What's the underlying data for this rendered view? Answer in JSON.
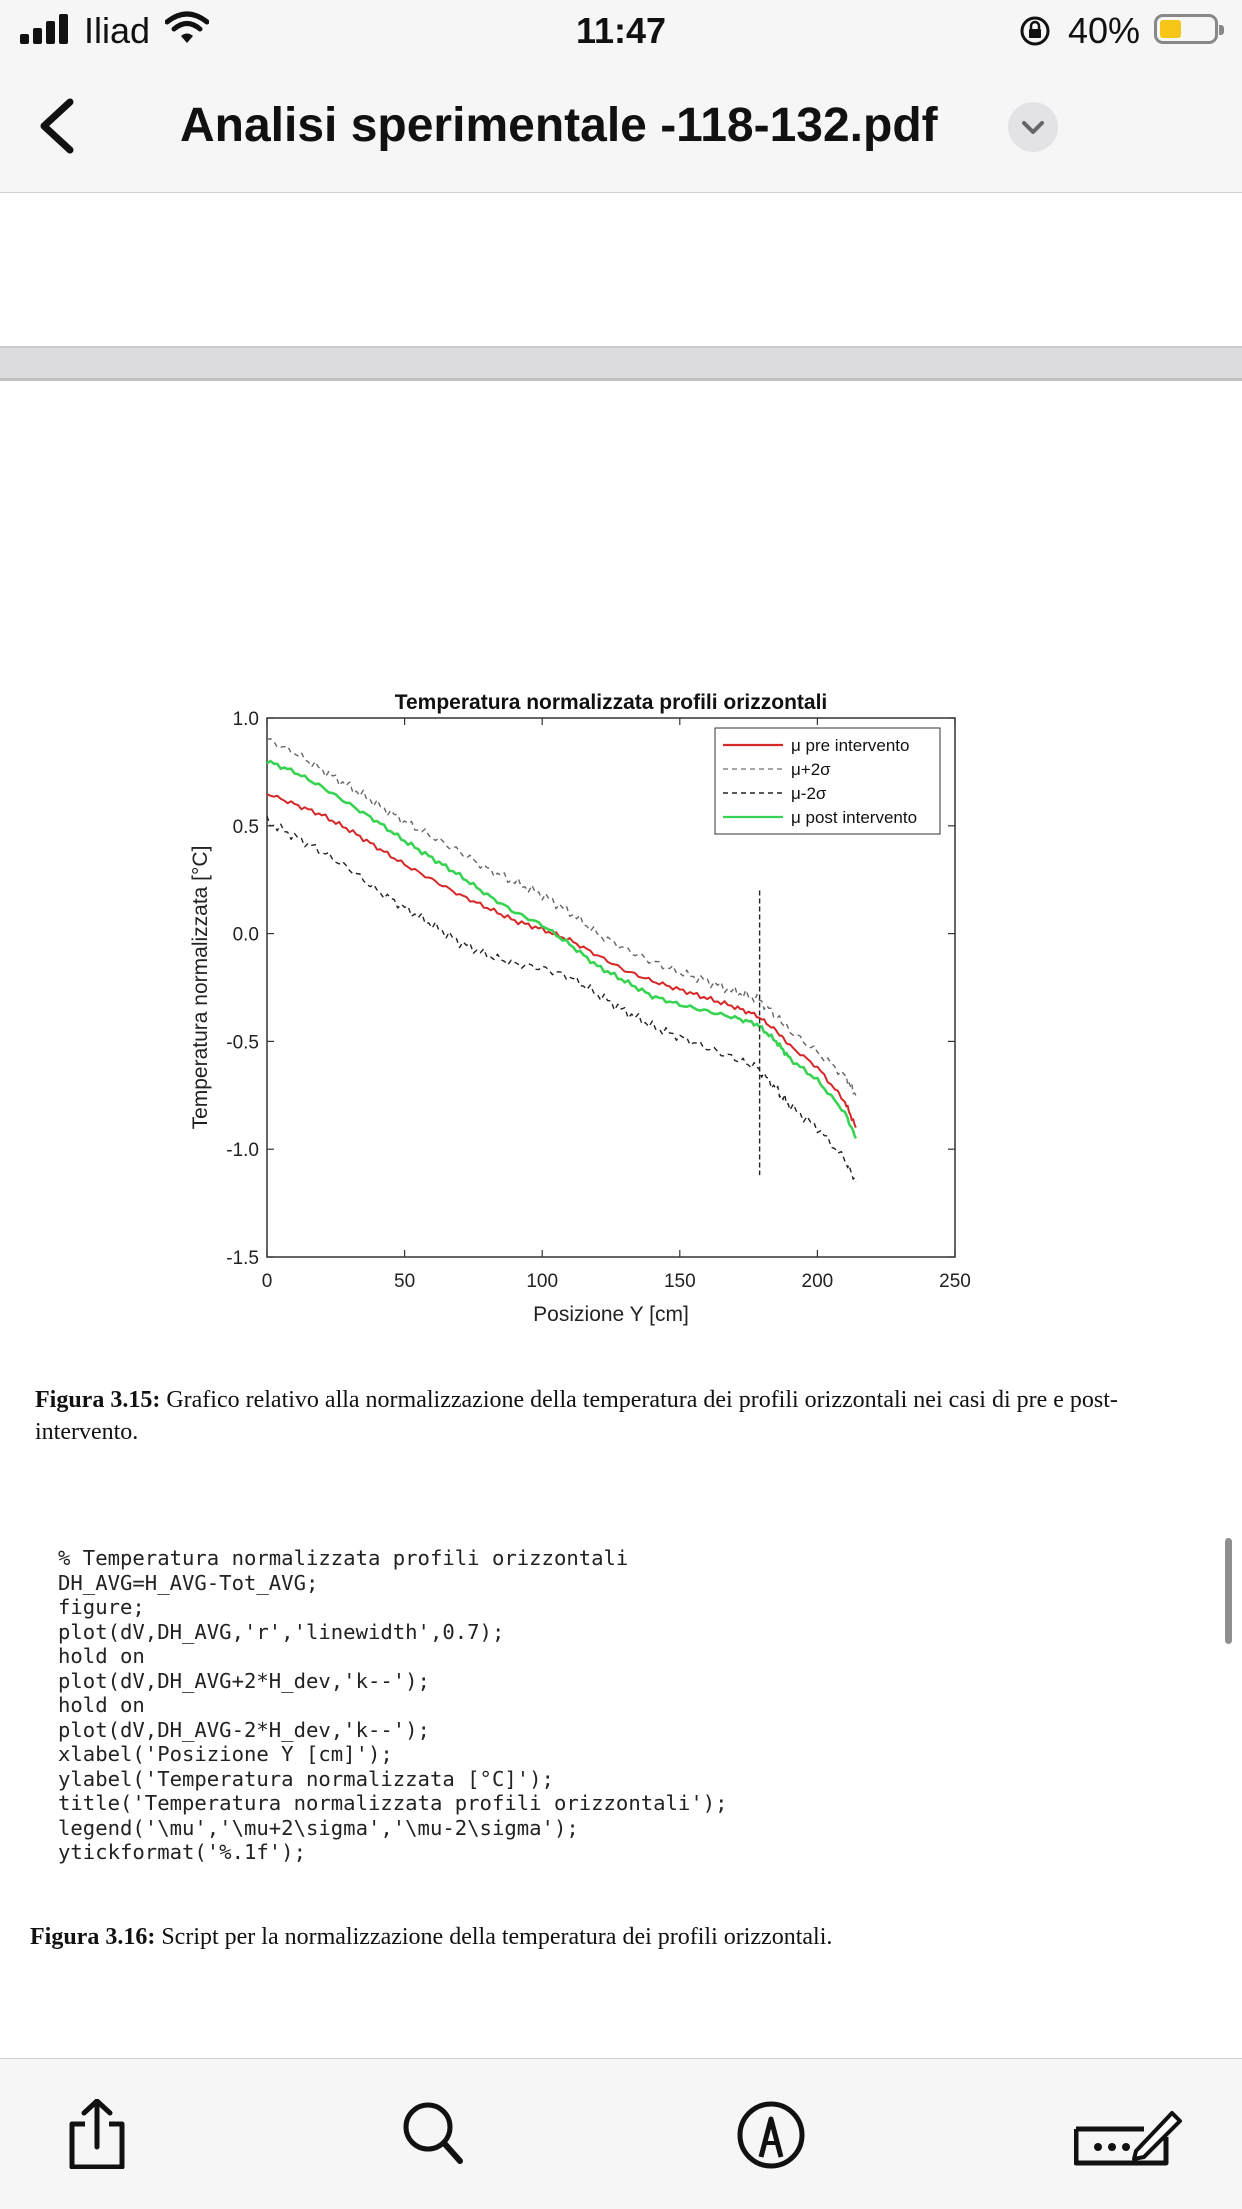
{
  "status_bar": {
    "carrier": "Iliad",
    "time": "11:47",
    "battery_percent": "40%",
    "battery_level": 0.4,
    "battery_color": "#f5c518"
  },
  "nav": {
    "title": "Analisi sperimentale -118-132.pdf",
    "back_icon": "chevron-left-icon",
    "title_menu_icon": "chevron-down-icon"
  },
  "chart_data": {
    "type": "line",
    "title": "Temperatura normalizzata profili orizzontali",
    "xlabel": "Posizione Y [cm]",
    "ylabel": "Temperatura normalizzata [°C]",
    "xlim": [
      0,
      250
    ],
    "ylim": [
      -1.5,
      1.0
    ],
    "xticks": [
      "0",
      "50",
      "100",
      "150",
      "200",
      "250"
    ],
    "yticks": [
      "1.0",
      "0.5",
      "0.0",
      "-0.5",
      "-1.0",
      "-1.5"
    ],
    "legend_position": "top-right",
    "grid": false,
    "legend": [
      {
        "label": "μ pre intervento",
        "color": "#d62728",
        "style": "solid"
      },
      {
        "label": "μ+2σ",
        "color": "#888888",
        "style": "dashed"
      },
      {
        "label": "μ-2σ",
        "color": "#222222",
        "style": "dashed"
      },
      {
        "label": "μ post intervento",
        "color": "#39d353",
        "style": "solid"
      }
    ],
    "x": [
      0,
      10,
      20,
      30,
      40,
      50,
      60,
      70,
      80,
      90,
      100,
      110,
      120,
      130,
      140,
      150,
      160,
      170,
      178,
      185,
      190,
      200,
      210,
      214
    ],
    "series": [
      {
        "name": "μ pre intervento",
        "values": [
          0.65,
          0.6,
          0.55,
          0.48,
          0.4,
          0.32,
          0.25,
          0.18,
          0.12,
          0.06,
          0.02,
          -0.03,
          -0.1,
          -0.17,
          -0.22,
          -0.26,
          -0.3,
          -0.34,
          -0.38,
          -0.45,
          -0.52,
          -0.62,
          -0.78,
          -0.9
        ]
      },
      {
        "name": "μ+2σ",
        "values": [
          0.9,
          0.84,
          0.76,
          0.68,
          0.6,
          0.52,
          0.45,
          0.38,
          0.3,
          0.24,
          0.18,
          0.1,
          0.0,
          -0.07,
          -0.13,
          -0.18,
          -0.22,
          -0.27,
          -0.3,
          -0.38,
          -0.45,
          -0.55,
          -0.66,
          -0.75
        ]
      },
      {
        "name": "μ-2σ",
        "values": [
          0.52,
          0.45,
          0.38,
          0.3,
          0.2,
          0.12,
          0.04,
          -0.04,
          -0.1,
          -0.14,
          -0.16,
          -0.2,
          -0.28,
          -0.36,
          -0.43,
          -0.48,
          -0.53,
          -0.58,
          -0.62,
          -0.72,
          -0.8,
          -0.9,
          -1.05,
          -1.15
        ]
      },
      {
        "name": "μ post intervento",
        "values": [
          0.8,
          0.75,
          0.68,
          0.6,
          0.52,
          0.43,
          0.35,
          0.27,
          0.18,
          0.1,
          0.04,
          -0.05,
          -0.15,
          -0.22,
          -0.29,
          -0.33,
          -0.36,
          -0.39,
          -0.42,
          -0.5,
          -0.58,
          -0.68,
          -0.83,
          -0.95
        ]
      }
    ],
    "spike": {
      "x": 179,
      "ymin": -1.12,
      "ymax": 0.2
    }
  },
  "figure_caption": {
    "label": "Figura 3.15:",
    "text": " Grafico relativo alla normalizzazione della temperatura dei profili orizzontali nei casi di pre e post-intervento."
  },
  "code": "% Temperatura normalizzata profili orizzontali\nDH_AVG=H_AVG-Tot_AVG;\nfigure;\nplot(dV,DH_AVG,'r','linewidth',0.7);\nhold on\nplot(dV,DH_AVG+2*H_dev,'k--');\nhold on\nplot(dV,DH_AVG-2*H_dev,'k--');\nxlabel('Posizione Y [cm]');\nylabel('Temperatura normalizzata [°C]');\ntitle('Temperatura normalizzata profili orizzontali');\nlegend('\\mu','\\mu+2\\sigma','\\mu-2\\sigma');\nytickformat('%.1f');",
  "script_caption": {
    "label": "Figura 3.16:",
    "text": " Script per la normalizzazione della temperatura dei profili orizzontali."
  },
  "toolbar": {
    "items": [
      "share-icon",
      "search-icon",
      "markup-icon",
      "sign-icon"
    ]
  }
}
